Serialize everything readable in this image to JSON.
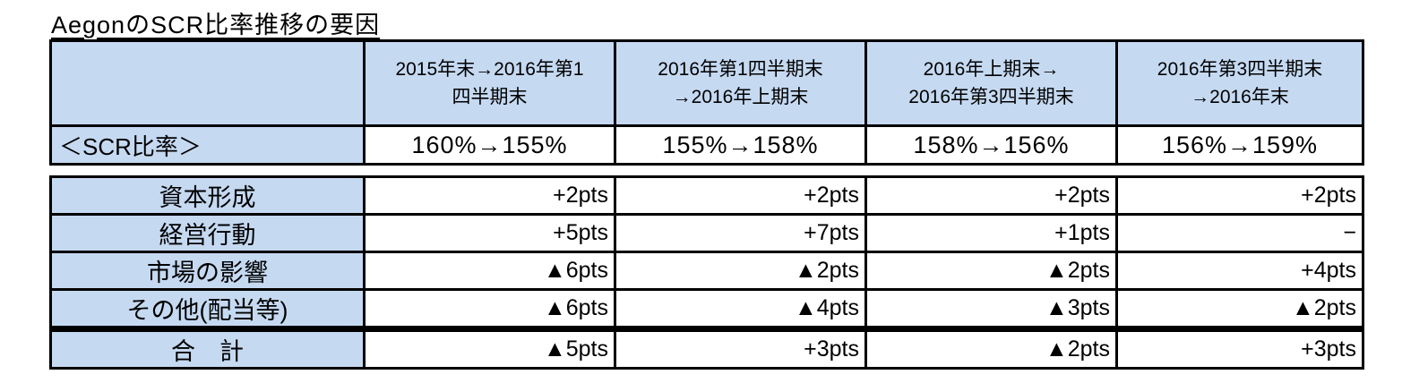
{
  "title": "AegonのSCR比率推移の要因",
  "colors": {
    "header_fill": "#C5D9F1",
    "border": "#000000",
    "text": "#000000",
    "background": "#FFFFFF",
    "negative_marker": "#000000"
  },
  "chart_data": {
    "type": "table",
    "title": "AegonのSCR比率推移の要因",
    "col_headers": [
      "2015年末→2016年第1\n四半期末",
      "2016年第1四半期末\n→2016年上期末",
      "2016年上期末→\n2016年第3四半期末",
      "2016年第3四半期末\n→2016年末"
    ],
    "scr_row": {
      "label": "＜SCR比率＞",
      "values": [
        "160%→155%",
        "155%→158%",
        "158%→156%",
        "156%→159%"
      ]
    },
    "factor_rows": [
      {
        "label": "資本形成",
        "values": [
          "+2pts",
          "+2pts",
          "+2pts",
          "+2pts"
        ]
      },
      {
        "label": "経営行動",
        "values": [
          "+5pts",
          "+7pts",
          "+1pts",
          "−"
        ]
      },
      {
        "label": "市場の影響",
        "values": [
          "▲6pts",
          "▲2pts",
          "▲2pts",
          "+4pts"
        ]
      },
      {
        "label": "その他(配当等)",
        "values": [
          "▲6pts",
          "▲4pts",
          "▲3pts",
          "▲2pts"
        ]
      },
      {
        "label": "合　計",
        "values": [
          "▲5pts",
          "+3pts",
          "▲2pts",
          "+3pts"
        ]
      }
    ],
    "notes": {
      "negative_prefix": "▲",
      "unit": "pts"
    }
  }
}
